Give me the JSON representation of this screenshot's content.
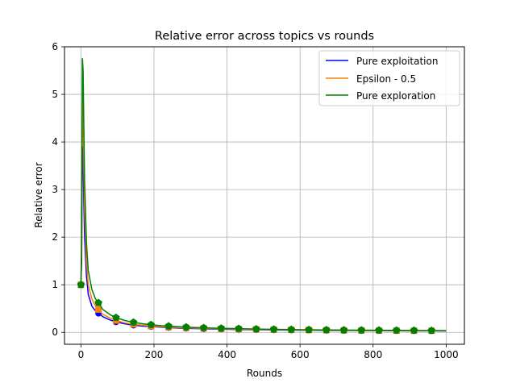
{
  "chart_data": {
    "type": "line",
    "title": "Relative error across topics vs rounds",
    "xlabel": "Rounds",
    "ylabel": "Relative error",
    "xlim": [
      -45,
      1050
    ],
    "ylim": [
      -0.25,
      6.0
    ],
    "xticks": [
      0,
      200,
      400,
      600,
      800,
      1000
    ],
    "yticks": [
      0,
      1,
      2,
      3,
      4,
      5,
      6
    ],
    "xtick_labels": [
      "0",
      "200",
      "400",
      "600",
      "800",
      "1000"
    ],
    "ytick_labels": [
      "0",
      "1",
      "2",
      "3",
      "4",
      "5",
      "6"
    ],
    "grid": true,
    "legend_location": "upper-right",
    "marker_x": [
      0,
      48,
      96,
      144,
      192,
      240,
      288,
      336,
      384,
      432,
      480,
      528,
      576,
      624,
      672,
      720,
      768,
      816,
      864,
      912,
      960
    ],
    "series": [
      {
        "name": "Pure exploitation",
        "color": "#0000ff",
        "x": [
          0,
          2,
          4,
          6,
          8,
          10,
          15,
          20,
          30,
          40,
          48,
          60,
          80,
          96,
          120,
          144,
          170,
          192,
          220,
          240,
          288,
          336,
          384,
          432,
          480,
          528,
          576,
          624,
          672,
          720,
          768,
          816,
          864,
          912,
          960,
          1000
        ],
        "y": [
          1.0,
          1.5,
          3.9,
          3.7,
          2.7,
          2.0,
          1.2,
          0.8,
          0.55,
          0.45,
          0.4,
          0.33,
          0.26,
          0.22,
          0.18,
          0.15,
          0.13,
          0.12,
          0.11,
          0.1,
          0.085,
          0.075,
          0.068,
          0.06,
          0.055,
          0.05,
          0.047,
          0.044,
          0.041,
          0.039,
          0.037,
          0.035,
          0.033,
          0.032,
          0.031,
          0.03
        ]
      },
      {
        "name": "Epsilon - 0.5",
        "color": "#ff7f0e",
        "x": [
          0,
          2,
          4,
          6,
          8,
          10,
          15,
          20,
          30,
          40,
          48,
          60,
          80,
          96,
          120,
          144,
          170,
          192,
          220,
          240,
          288,
          336,
          384,
          432,
          480,
          528,
          576,
          624,
          672,
          720,
          768,
          816,
          864,
          912,
          960,
          1000
        ],
        "y": [
          1.0,
          1.8,
          4.9,
          4.6,
          3.5,
          2.6,
          1.5,
          1.0,
          0.7,
          0.55,
          0.48,
          0.38,
          0.3,
          0.25,
          0.2,
          0.17,
          0.15,
          0.13,
          0.12,
          0.11,
          0.095,
          0.085,
          0.075,
          0.068,
          0.062,
          0.057,
          0.053,
          0.049,
          0.046,
          0.043,
          0.041,
          0.039,
          0.037,
          0.035,
          0.034,
          0.033
        ]
      },
      {
        "name": "Pure exploration",
        "color": "#008000",
        "x": [
          0,
          2,
          4,
          6,
          8,
          10,
          15,
          20,
          30,
          40,
          48,
          60,
          80,
          96,
          120,
          144,
          170,
          192,
          220,
          240,
          288,
          336,
          384,
          432,
          480,
          528,
          576,
          624,
          672,
          720,
          768,
          816,
          864,
          912,
          960,
          1000
        ],
        "y": [
          1.0,
          2.2,
          5.75,
          5.5,
          4.3,
          3.2,
          1.9,
          1.3,
          0.9,
          0.7,
          0.62,
          0.48,
          0.37,
          0.31,
          0.25,
          0.21,
          0.18,
          0.16,
          0.14,
          0.13,
          0.11,
          0.095,
          0.085,
          0.078,
          0.07,
          0.064,
          0.059,
          0.055,
          0.051,
          0.048,
          0.046,
          0.044,
          0.042,
          0.04,
          0.038,
          0.037
        ]
      }
    ]
  }
}
